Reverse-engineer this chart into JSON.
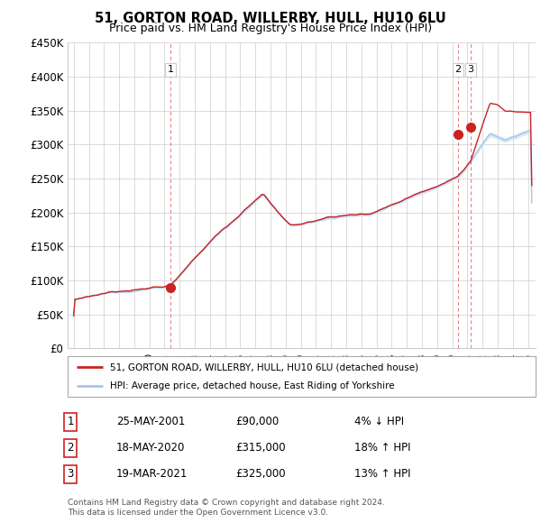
{
  "title": "51, GORTON ROAD, WILLERBY, HULL, HU10 6LU",
  "subtitle": "Price paid vs. HM Land Registry's House Price Index (HPI)",
  "ylim": [
    0,
    450000
  ],
  "yticks": [
    0,
    50000,
    100000,
    150000,
    200000,
    250000,
    300000,
    350000,
    400000,
    450000
  ],
  "ytick_labels": [
    "£0",
    "£50K",
    "£100K",
    "£150K",
    "£200K",
    "£250K",
    "£300K",
    "£350K",
    "£400K",
    "£450K"
  ],
  "xlim_start": 1994.6,
  "xlim_end": 2025.5,
  "transactions": [
    {
      "label": "1",
      "date_str": "25-MAY-2001",
      "year": 2001.38,
      "price": 90000,
      "pct": "4%",
      "dir": "↓"
    },
    {
      "label": "2",
      "date_str": "18-MAY-2020",
      "year": 2020.38,
      "price": 315000,
      "pct": "18%",
      "dir": "↑"
    },
    {
      "label": "3",
      "date_str": "19-MAR-2021",
      "year": 2021.21,
      "price": 325000,
      "pct": "13%",
      "dir": "↑"
    }
  ],
  "hpi_color": "#aac4e8",
  "hpi_fill_color": "#d4e5f7",
  "price_color": "#cc2222",
  "vline_color": "#cc2222",
  "legend_label_price": "51, GORTON ROAD, WILLERBY, HULL, HU10 6LU (detached house)",
  "legend_label_hpi": "HPI: Average price, detached house, East Riding of Yorkshire",
  "footer1": "Contains HM Land Registry data © Crown copyright and database right 2024.",
  "footer2": "This data is licensed under the Open Government Licence v3.0.",
  "background_color": "#ffffff",
  "grid_color": "#cccccc",
  "label_box_color": "#cc2222"
}
